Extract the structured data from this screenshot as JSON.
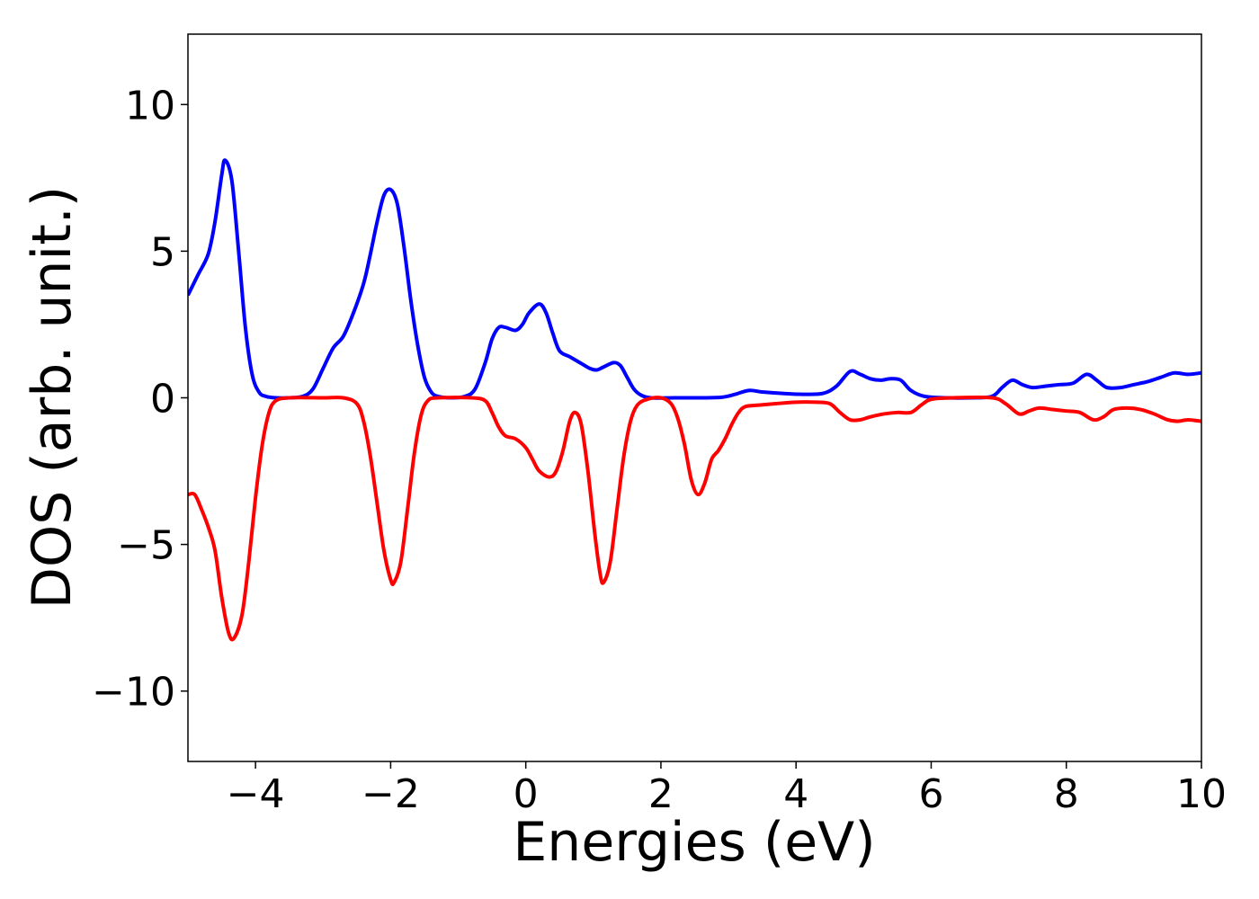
{
  "chart_data": {
    "type": "line",
    "title": "",
    "xlabel": "Energies (eV)",
    "ylabel": "DOS (arb. unit.)",
    "xlim": [
      -5,
      10
    ],
    "ylim": [
      -12.4,
      12.4
    ],
    "xticks": [
      -4,
      -2,
      0,
      2,
      4,
      6,
      8,
      10
    ],
    "xtick_labels": [
      "−4",
      "−2",
      "0",
      "2",
      "4",
      "6",
      "8",
      "10"
    ],
    "yticks": [
      -10,
      -5,
      0,
      5,
      10
    ],
    "ytick_labels": [
      "−10",
      "−5",
      "0",
      "5",
      "10"
    ],
    "grid": false,
    "legend": false,
    "series": [
      {
        "color": "#0000ff",
        "points": [
          [
            -5.0,
            3.5
          ],
          [
            -4.85,
            4.2
          ],
          [
            -4.7,
            4.9
          ],
          [
            -4.6,
            6.0
          ],
          [
            -4.5,
            7.6
          ],
          [
            -4.45,
            8.1
          ],
          [
            -4.35,
            7.4
          ],
          [
            -4.25,
            5.0
          ],
          [
            -4.15,
            2.4
          ],
          [
            -4.05,
            0.8
          ],
          [
            -3.95,
            0.2
          ],
          [
            -3.85,
            0.05
          ],
          [
            -3.7,
            0.0
          ],
          [
            -3.5,
            0.0
          ],
          [
            -3.3,
            0.05
          ],
          [
            -3.15,
            0.3
          ],
          [
            -3.0,
            1.0
          ],
          [
            -2.85,
            1.7
          ],
          [
            -2.7,
            2.1
          ],
          [
            -2.55,
            2.9
          ],
          [
            -2.4,
            3.9
          ],
          [
            -2.3,
            4.9
          ],
          [
            -2.2,
            6.0
          ],
          [
            -2.1,
            6.9
          ],
          [
            -2.0,
            7.1
          ],
          [
            -1.9,
            6.6
          ],
          [
            -1.8,
            5.1
          ],
          [
            -1.7,
            3.3
          ],
          [
            -1.6,
            1.8
          ],
          [
            -1.5,
            0.7
          ],
          [
            -1.4,
            0.2
          ],
          [
            -1.3,
            0.05
          ],
          [
            -1.1,
            0.0
          ],
          [
            -0.9,
            0.05
          ],
          [
            -0.75,
            0.3
          ],
          [
            -0.6,
            1.2
          ],
          [
            -0.5,
            2.0
          ],
          [
            -0.4,
            2.4
          ],
          [
            -0.3,
            2.4
          ],
          [
            -0.15,
            2.3
          ],
          [
            -0.05,
            2.5
          ],
          [
            0.05,
            2.9
          ],
          [
            0.2,
            3.2
          ],
          [
            0.3,
            2.9
          ],
          [
            0.4,
            2.2
          ],
          [
            0.5,
            1.6
          ],
          [
            0.65,
            1.4
          ],
          [
            0.8,
            1.2
          ],
          [
            0.95,
            1.0
          ],
          [
            1.05,
            0.95
          ],
          [
            1.15,
            1.05
          ],
          [
            1.3,
            1.2
          ],
          [
            1.4,
            1.1
          ],
          [
            1.5,
            0.7
          ],
          [
            1.6,
            0.3
          ],
          [
            1.7,
            0.1
          ],
          [
            1.85,
            0.0
          ],
          [
            2.2,
            0.0
          ],
          [
            2.6,
            0.0
          ],
          [
            2.9,
            0.02
          ],
          [
            3.1,
            0.12
          ],
          [
            3.3,
            0.25
          ],
          [
            3.5,
            0.2
          ],
          [
            3.8,
            0.15
          ],
          [
            4.1,
            0.12
          ],
          [
            4.4,
            0.15
          ],
          [
            4.6,
            0.4
          ],
          [
            4.8,
            0.9
          ],
          [
            4.95,
            0.8
          ],
          [
            5.1,
            0.65
          ],
          [
            5.25,
            0.6
          ],
          [
            5.4,
            0.65
          ],
          [
            5.55,
            0.6
          ],
          [
            5.7,
            0.25
          ],
          [
            5.9,
            0.05
          ],
          [
            6.2,
            0.0
          ],
          [
            6.6,
            0.0
          ],
          [
            6.9,
            0.05
          ],
          [
            7.05,
            0.35
          ],
          [
            7.2,
            0.6
          ],
          [
            7.35,
            0.45
          ],
          [
            7.5,
            0.35
          ],
          [
            7.7,
            0.4
          ],
          [
            7.9,
            0.45
          ],
          [
            8.1,
            0.5
          ],
          [
            8.3,
            0.8
          ],
          [
            8.45,
            0.6
          ],
          [
            8.6,
            0.35
          ],
          [
            8.8,
            0.35
          ],
          [
            9.0,
            0.45
          ],
          [
            9.2,
            0.55
          ],
          [
            9.4,
            0.7
          ],
          [
            9.6,
            0.85
          ],
          [
            9.8,
            0.8
          ],
          [
            10.0,
            0.85
          ]
        ]
      },
      {
        "color": "#ff0000",
        "points": [
          [
            -5.0,
            -3.3
          ],
          [
            -4.9,
            -3.3
          ],
          [
            -4.8,
            -3.8
          ],
          [
            -4.7,
            -4.4
          ],
          [
            -4.6,
            -5.2
          ],
          [
            -4.5,
            -6.8
          ],
          [
            -4.4,
            -8.0
          ],
          [
            -4.32,
            -8.2
          ],
          [
            -4.2,
            -7.4
          ],
          [
            -4.1,
            -5.6
          ],
          [
            -4.0,
            -3.4
          ],
          [
            -3.9,
            -1.6
          ],
          [
            -3.8,
            -0.5
          ],
          [
            -3.7,
            -0.1
          ],
          [
            -3.5,
            0.0
          ],
          [
            -3.0,
            0.0
          ],
          [
            -2.7,
            0.0
          ],
          [
            -2.5,
            -0.2
          ],
          [
            -2.4,
            -0.8
          ],
          [
            -2.3,
            -2.0
          ],
          [
            -2.2,
            -3.6
          ],
          [
            -2.1,
            -5.2
          ],
          [
            -2.0,
            -6.2
          ],
          [
            -1.95,
            -6.3
          ],
          [
            -1.85,
            -5.6
          ],
          [
            -1.75,
            -3.8
          ],
          [
            -1.65,
            -1.9
          ],
          [
            -1.55,
            -0.6
          ],
          [
            -1.45,
            -0.1
          ],
          [
            -1.3,
            0.0
          ],
          [
            -0.8,
            0.0
          ],
          [
            -0.6,
            -0.1
          ],
          [
            -0.5,
            -0.5
          ],
          [
            -0.4,
            -1.0
          ],
          [
            -0.3,
            -1.3
          ],
          [
            -0.15,
            -1.4
          ],
          [
            0.0,
            -1.7
          ],
          [
            0.1,
            -2.1
          ],
          [
            0.2,
            -2.5
          ],
          [
            0.35,
            -2.7
          ],
          [
            0.45,
            -2.5
          ],
          [
            0.55,
            -1.8
          ],
          [
            0.65,
            -0.8
          ],
          [
            0.73,
            -0.5
          ],
          [
            0.82,
            -0.9
          ],
          [
            0.92,
            -2.5
          ],
          [
            1.02,
            -4.6
          ],
          [
            1.1,
            -6.0
          ],
          [
            1.15,
            -6.3
          ],
          [
            1.25,
            -5.6
          ],
          [
            1.35,
            -3.8
          ],
          [
            1.45,
            -2.0
          ],
          [
            1.55,
            -0.8
          ],
          [
            1.65,
            -0.25
          ],
          [
            1.8,
            -0.05
          ],
          [
            2.0,
            0.0
          ],
          [
            2.15,
            -0.2
          ],
          [
            2.25,
            -0.7
          ],
          [
            2.35,
            -1.6
          ],
          [
            2.45,
            -2.8
          ],
          [
            2.55,
            -3.3
          ],
          [
            2.65,
            -2.9
          ],
          [
            2.75,
            -2.1
          ],
          [
            2.85,
            -1.8
          ],
          [
            2.95,
            -1.4
          ],
          [
            3.05,
            -0.9
          ],
          [
            3.15,
            -0.5
          ],
          [
            3.25,
            -0.3
          ],
          [
            3.45,
            -0.25
          ],
          [
            3.7,
            -0.2
          ],
          [
            4.0,
            -0.15
          ],
          [
            4.3,
            -0.15
          ],
          [
            4.5,
            -0.2
          ],
          [
            4.65,
            -0.5
          ],
          [
            4.8,
            -0.75
          ],
          [
            4.95,
            -0.75
          ],
          [
            5.1,
            -0.65
          ],
          [
            5.3,
            -0.55
          ],
          [
            5.5,
            -0.5
          ],
          [
            5.7,
            -0.5
          ],
          [
            5.85,
            -0.25
          ],
          [
            6.0,
            -0.05
          ],
          [
            6.3,
            0.0
          ],
          [
            6.9,
            0.0
          ],
          [
            7.1,
            -0.2
          ],
          [
            7.3,
            -0.55
          ],
          [
            7.45,
            -0.45
          ],
          [
            7.6,
            -0.35
          ],
          [
            7.8,
            -0.4
          ],
          [
            8.0,
            -0.45
          ],
          [
            8.2,
            -0.5
          ],
          [
            8.4,
            -0.75
          ],
          [
            8.55,
            -0.65
          ],
          [
            8.7,
            -0.4
          ],
          [
            8.9,
            -0.35
          ],
          [
            9.1,
            -0.4
          ],
          [
            9.3,
            -0.55
          ],
          [
            9.5,
            -0.75
          ],
          [
            9.65,
            -0.8
          ],
          [
            9.8,
            -0.75
          ],
          [
            10.0,
            -0.8
          ]
        ]
      }
    ]
  }
}
